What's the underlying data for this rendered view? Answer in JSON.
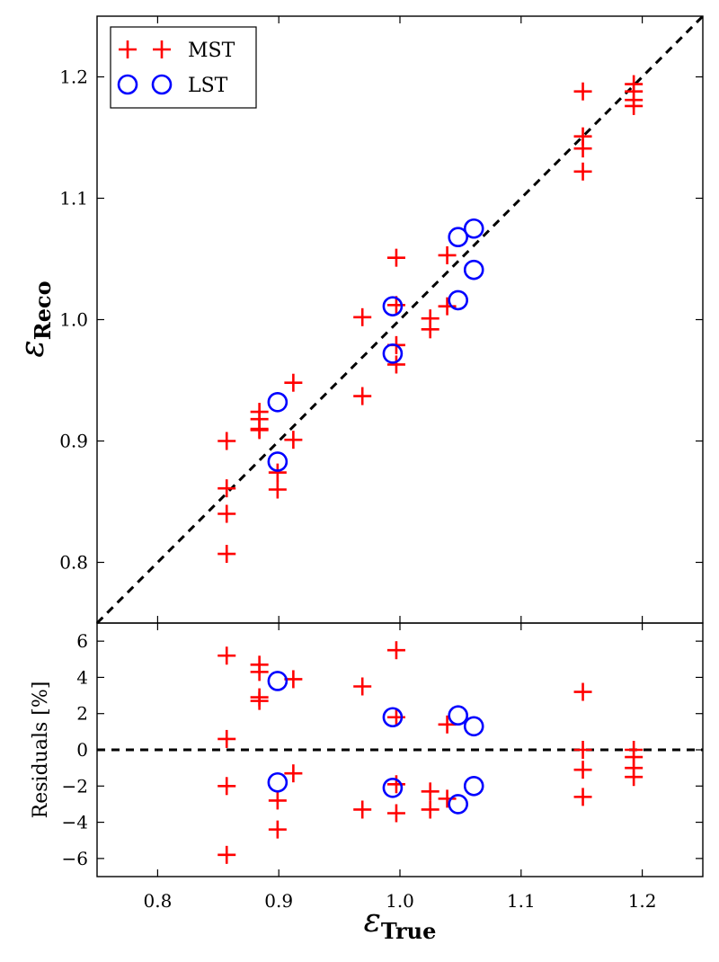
{
  "chart_data": [
    {
      "type": "scatter",
      "name": "main",
      "xlim": [
        0.75,
        1.25
      ],
      "ylim": [
        0.75,
        1.25
      ],
      "xticks": [
        0.8,
        0.9,
        1.0,
        1.1,
        1.2
      ],
      "yticks": [
        0.8,
        0.9,
        1.0,
        1.1,
        1.2
      ],
      "ytick_labels": [
        "0.8",
        "0.9",
        "1.0",
        "1.1",
        "1.2"
      ],
      "ylabel": {
        "symbol": "ε",
        "subscript": "Reco"
      },
      "reference_line": "y = x",
      "legend": {
        "position": "top-left",
        "entries": [
          "MST",
          "LST"
        ]
      },
      "series": [
        {
          "name": "MST",
          "marker": "plus",
          "color": "#ff0000",
          "points": [
            [
              0.857,
              0.9
            ],
            [
              0.857,
              0.861
            ],
            [
              0.857,
              0.84
            ],
            [
              0.857,
              0.807
            ],
            [
              0.884,
              0.924
            ],
            [
              0.884,
              0.918
            ],
            [
              0.884,
              0.91
            ],
            [
              0.884,
              0.909
            ],
            [
              0.899,
              0.874
            ],
            [
              0.899,
              0.86
            ],
            [
              0.912,
              0.948
            ],
            [
              0.912,
              0.901
            ],
            [
              0.969,
              1.002
            ],
            [
              0.969,
              0.937
            ],
            [
              0.997,
              1.051
            ],
            [
              0.997,
              1.012
            ],
            [
              0.997,
              0.979
            ],
            [
              0.997,
              0.963
            ],
            [
              1.025,
              1.001
            ],
            [
              1.025,
              0.992
            ],
            [
              1.039,
              1.053
            ],
            [
              1.039,
              1.011
            ],
            [
              1.151,
              1.188
            ],
            [
              1.151,
              1.151
            ],
            [
              1.151,
              1.141
            ],
            [
              1.151,
              1.122
            ],
            [
              1.193,
              1.194
            ],
            [
              1.193,
              1.188
            ],
            [
              1.193,
              1.181
            ],
            [
              1.193,
              1.176
            ]
          ]
        },
        {
          "name": "LST",
          "marker": "circle",
          "color": "#0000ff",
          "points": [
            [
              0.899,
              0.932
            ],
            [
              0.899,
              0.883
            ],
            [
              0.994,
              1.011
            ],
            [
              0.994,
              0.972
            ],
            [
              1.048,
              1.068
            ],
            [
              1.048,
              1.016
            ],
            [
              1.061,
              1.075
            ],
            [
              1.061,
              1.041
            ]
          ]
        }
      ]
    },
    {
      "type": "scatter",
      "name": "residuals",
      "xlim": [
        0.75,
        1.25
      ],
      "ylim": [
        -7,
        7
      ],
      "xticks": [
        0.8,
        0.9,
        1.0,
        1.1,
        1.2
      ],
      "xtick_labels": [
        "0.8",
        "0.9",
        "1.0",
        "1.1",
        "1.2"
      ],
      "yticks": [
        -6,
        -4,
        -2,
        0,
        2,
        4,
        6
      ],
      "ytick_labels": [
        "−6",
        "−4",
        "−2",
        "0",
        "2",
        "4",
        "6"
      ],
      "ylabel": "Residuals [%]",
      "xlabel": {
        "symbol": "ε",
        "subscript": "True"
      },
      "reference_line": "y = 0",
      "series": [
        {
          "name": "MST",
          "marker": "plus",
          "color": "#ff0000",
          "points": [
            [
              0.857,
              5.2
            ],
            [
              0.857,
              0.6
            ],
            [
              0.857,
              -2.0
            ],
            [
              0.857,
              -5.8
            ],
            [
              0.884,
              4.7
            ],
            [
              0.884,
              4.3
            ],
            [
              0.884,
              2.9
            ],
            [
              0.884,
              2.7
            ],
            [
              0.899,
              -2.8
            ],
            [
              0.899,
              -4.4
            ],
            [
              0.912,
              3.9
            ],
            [
              0.912,
              -1.3
            ],
            [
              0.969,
              3.5
            ],
            [
              0.969,
              -3.3
            ],
            [
              0.997,
              5.5
            ],
            [
              0.997,
              1.8
            ],
            [
              0.997,
              -1.9
            ],
            [
              0.997,
              -3.5
            ],
            [
              1.025,
              -2.3
            ],
            [
              1.025,
              -3.3
            ],
            [
              1.039,
              1.4
            ],
            [
              1.039,
              -2.7
            ],
            [
              1.151,
              3.2
            ],
            [
              1.151,
              0.0
            ],
            [
              1.151,
              -1.1
            ],
            [
              1.151,
              -2.6
            ],
            [
              1.193,
              0.0
            ],
            [
              1.193,
              -0.4
            ],
            [
              1.193,
              -1.0
            ],
            [
              1.193,
              -1.5
            ]
          ]
        },
        {
          "name": "LST",
          "marker": "circle",
          "color": "#0000ff",
          "points": [
            [
              0.899,
              3.8
            ],
            [
              0.899,
              -1.8
            ],
            [
              0.994,
              1.8
            ],
            [
              0.994,
              -2.1
            ],
            [
              1.048,
              1.9
            ],
            [
              1.048,
              -3.0
            ],
            [
              1.061,
              1.3
            ],
            [
              1.061,
              -2.0
            ]
          ]
        }
      ]
    }
  ]
}
